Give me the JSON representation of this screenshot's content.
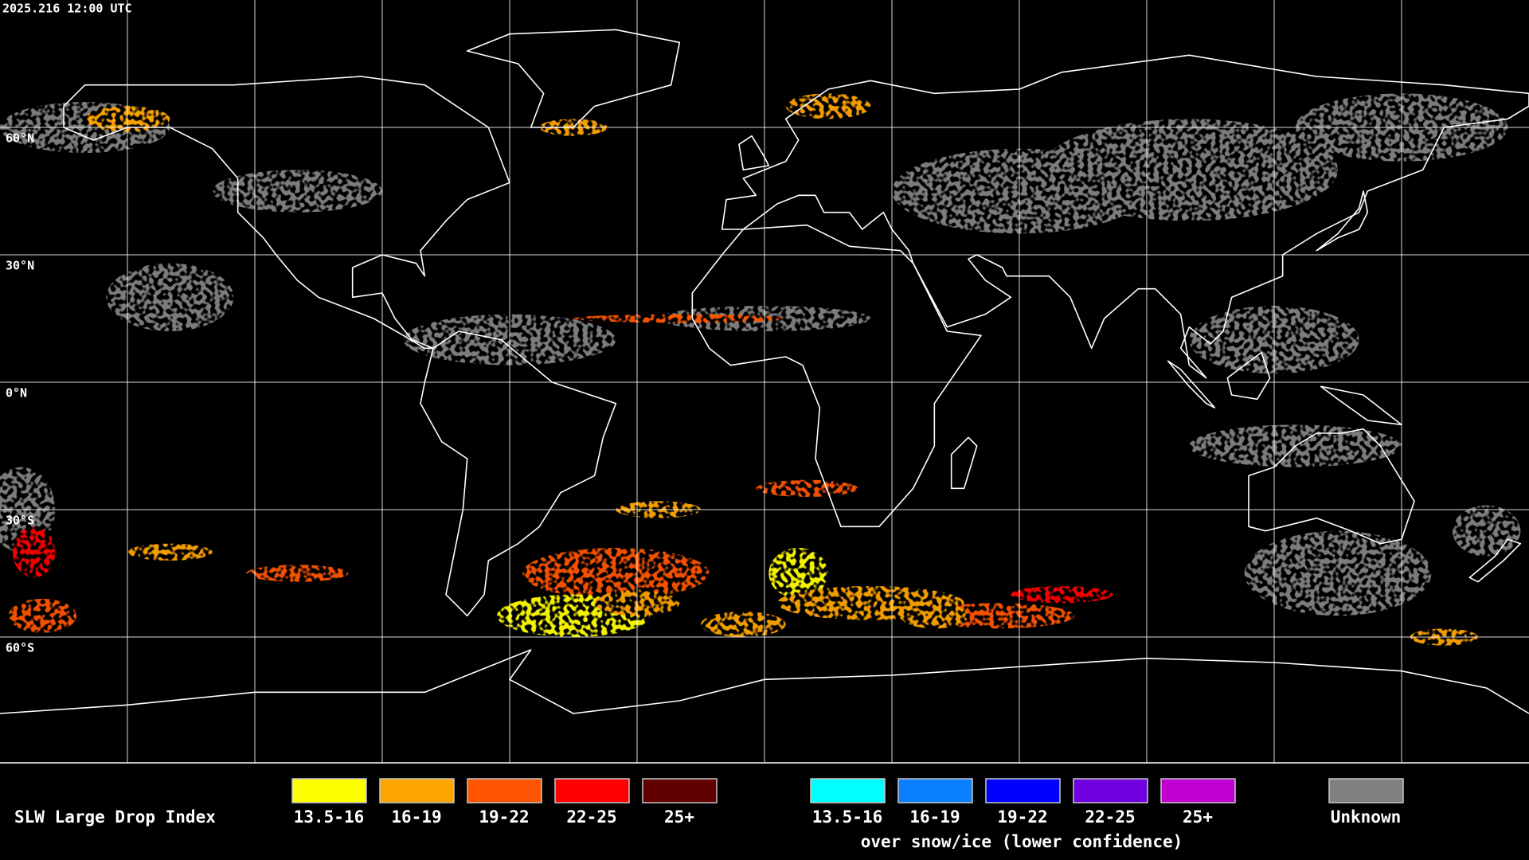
{
  "header": {
    "timestamp": "2025.216 12:00 UTC"
  },
  "map": {
    "latitude_labels": [
      "60°N",
      "30°N",
      "0°N",
      "30°S",
      "60°S"
    ]
  },
  "legend": {
    "title": "SLW Large Drop Index",
    "groups": [
      {
        "items": [
          {
            "label": "13.5-16",
            "color": "#ffff00"
          },
          {
            "label": "16-19",
            "color": "#ffa500"
          },
          {
            "label": "19-22",
            "color": "#ff5500"
          },
          {
            "label": "22-25",
            "color": "#ff0000"
          },
          {
            "label": "25+",
            "color": "#600000"
          }
        ]
      },
      {
        "items": [
          {
            "label": "13.5-16",
            "color": "#00ffff"
          },
          {
            "label": "16-19",
            "color": "#0a80ff"
          },
          {
            "label": "19-22",
            "color": "#0000ff"
          },
          {
            "label": "22-25",
            "color": "#7000e0"
          },
          {
            "label": "25+",
            "color": "#c000d0"
          }
        ]
      }
    ],
    "note": "over snow/ice (lower confidence)",
    "unknown": {
      "label": "Unknown",
      "color": "#808080"
    }
  }
}
